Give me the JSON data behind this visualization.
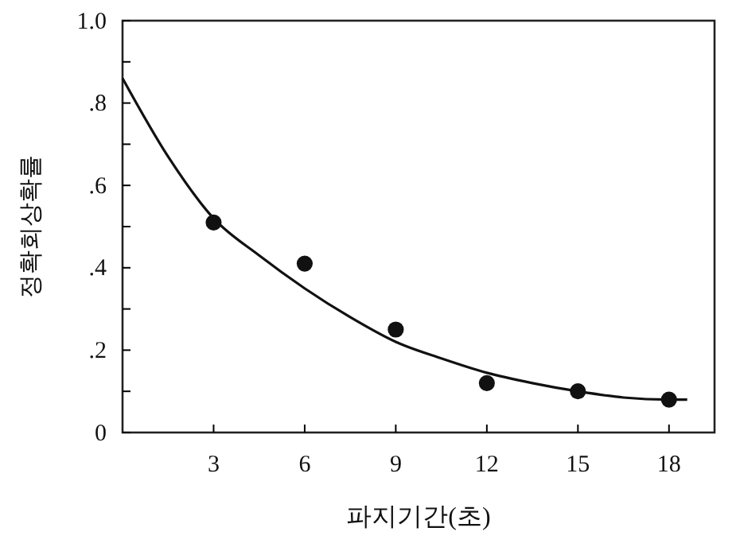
{
  "chart_data": {
    "type": "scatter",
    "xlabel": "파지기간(초)",
    "ylabel": "정확회상확률",
    "xlim": [
      0,
      19.5
    ],
    "xticks": [
      3,
      6,
      9,
      12,
      15,
      18
    ],
    "ylim": [
      0,
      1
    ],
    "yticks": [
      {
        "value": 0,
        "label": "0"
      },
      {
        "value": 0.1,
        "label": null
      },
      {
        "value": 0.2,
        "label": ".2"
      },
      {
        "value": 0.3,
        "label": null
      },
      {
        "value": 0.4,
        "label": ".4"
      },
      {
        "value": 0.5,
        "label": null
      },
      {
        "value": 0.6,
        "label": ".6"
      },
      {
        "value": 0.7,
        "label": null
      },
      {
        "value": 0.8,
        "label": ".8"
      },
      {
        "value": 0.9,
        "label": null
      },
      {
        "value": 1,
        "label": "1.0"
      }
    ],
    "grid": false,
    "marker": "circle",
    "series": [
      {
        "color": "#111111",
        "x": [
          3,
          6,
          9,
          12,
          15,
          18
        ],
        "values": [
          0.51,
          0.41,
          0.25,
          0.12,
          0.1,
          0.08
        ]
      },
      {
        "type": "line",
        "color": "#111111",
        "line_style": "solid",
        "marker": "none",
        "x": [
          0,
          1.5,
          3,
          4.5,
          6,
          7.5,
          9,
          10.5,
          12,
          13.5,
          15,
          16.5,
          18,
          18.6
        ],
        "values": [
          0.86,
          0.67,
          0.52,
          0.43,
          0.35,
          0.28,
          0.22,
          0.18,
          0.145,
          0.12,
          0.1,
          0.085,
          0.08,
          0.08
        ]
      }
    ]
  }
}
